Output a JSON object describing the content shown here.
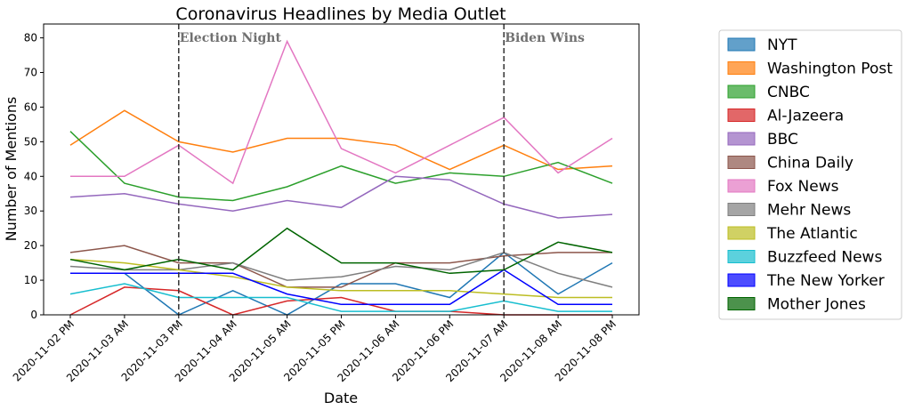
{
  "chart_data": {
    "type": "line",
    "title": "Coronavirus Headlines by Media Outlet",
    "xlabel": "Date",
    "ylabel": "Number of Mentions",
    "ylim": [
      0,
      84
    ],
    "yticks": [
      0,
      10,
      20,
      30,
      40,
      50,
      60,
      70,
      80
    ],
    "x": [
      "2020-11-02 PM",
      "2020-11-03 AM",
      "2020-11-03 PM",
      "2020-11-04 AM",
      "2020-11-05 AM",
      "2020-11-05 PM",
      "2020-11-06 AM",
      "2020-11-06 PM",
      "2020-11-07 AM",
      "2020-11-08 AM",
      "2020-11-08 PM"
    ],
    "grid": false,
    "legend_position": "outside-right",
    "annotations": [
      {
        "label": "Election Night",
        "x_index": 2
      },
      {
        "label": "Biden Wins",
        "x_index": 8
      }
    ],
    "series": [
      {
        "name": "NYT",
        "color": "#1f77b4",
        "values": [
          12,
          12,
          0,
          7,
          0,
          9,
          9,
          5,
          18,
          6,
          15
        ]
      },
      {
        "name": "Washington Post",
        "color": "#ff7f0e",
        "values": [
          49,
          59,
          50,
          47,
          51,
          51,
          49,
          42,
          49,
          42,
          43
        ]
      },
      {
        "name": "CNBC",
        "color": "#2ca02c",
        "values": [
          53,
          38,
          34,
          33,
          37,
          43,
          38,
          41,
          40,
          44,
          38
        ]
      },
      {
        "name": "Al-Jazeera",
        "color": "#d62728",
        "values": [
          0,
          8,
          7,
          0,
          4,
          5,
          1,
          1,
          0,
          0,
          0
        ]
      },
      {
        "name": "BBC",
        "color": "#9467bd",
        "values": [
          34,
          35,
          32,
          30,
          33,
          31,
          40,
          39,
          32,
          28,
          29
        ]
      },
      {
        "name": "China Daily",
        "color": "#8c564b",
        "values": [
          18,
          20,
          15,
          15,
          8,
          8,
          15,
          15,
          17,
          18,
          18
        ]
      },
      {
        "name": "Fox News",
        "color": "#e377c2",
        "values": [
          40,
          40,
          49,
          38,
          79,
          48,
          41,
          49,
          57,
          41,
          51
        ]
      },
      {
        "name": "Mehr News",
        "color": "#7f7f7f",
        "values": [
          14,
          13,
          13,
          15,
          10,
          11,
          14,
          13,
          18,
          12,
          8
        ]
      },
      {
        "name": "The Atlantic",
        "color": "#bcbd22",
        "values": [
          16,
          15,
          13,
          11,
          8,
          7,
          7,
          7,
          6,
          5,
          5
        ]
      },
      {
        "name": "Buzzfeed News",
        "color": "#17becf",
        "values": [
          6,
          9,
          5,
          5,
          5,
          1,
          1,
          1,
          4,
          1,
          1
        ]
      },
      {
        "name": "The New Yorker",
        "color": "#0000ff",
        "values": [
          12,
          12,
          12,
          12,
          6,
          3,
          3,
          3,
          13,
          3,
          3
        ]
      },
      {
        "name": "Mother Jones",
        "color": "#006400",
        "values": [
          16,
          13,
          16,
          13,
          25,
          15,
          15,
          12,
          13,
          21,
          18
        ]
      }
    ]
  }
}
